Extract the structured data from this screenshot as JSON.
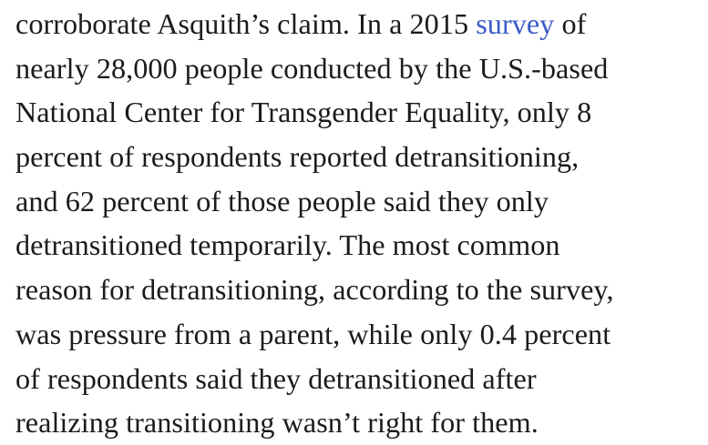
{
  "article": {
    "line_1_before_link": "corroborate Asquith’s claim. In a 2015 ",
    "link_text": "survey",
    "line_1_after_link": " of",
    "lines": [
      "nearly 28,000 people conducted by the U.S.-based",
      "National Center for Transgender Equality, only 8",
      "percent of respondents reported detransitioning,",
      "and 62 percent of those people said they only",
      "detransitioned temporarily. The most common",
      "reason for detransitioning, according to the survey,",
      "was pressure from a parent, while only 0.4 percent",
      "of respondents said they detransitioned after",
      "realizing transitioning wasn’t right for them."
    ]
  },
  "colors": {
    "text": "#1b1b1b",
    "link": "#3a5bc7",
    "background": "#ffffff"
  }
}
